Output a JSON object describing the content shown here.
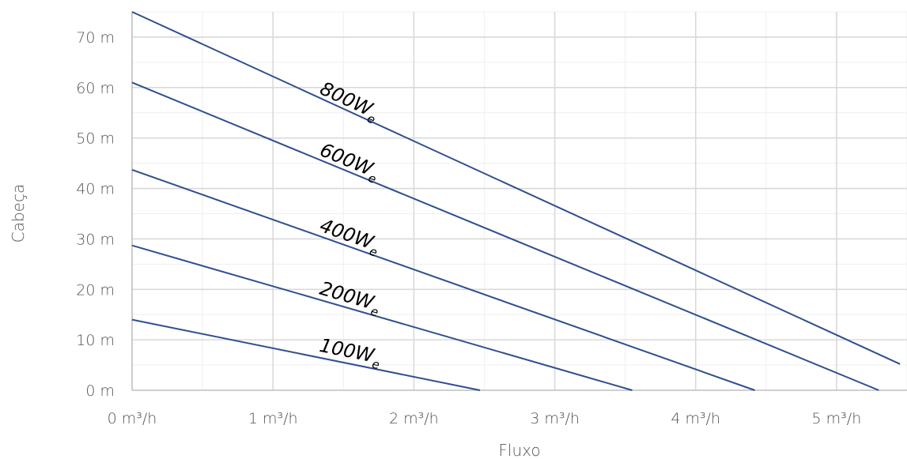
{
  "chart_data": {
    "type": "line",
    "xlabel": "Fluxo",
    "ylabel": "Cabeça",
    "xlim": [
      0,
      5.5
    ],
    "ylim": [
      0,
      75
    ],
    "x_ticks": [
      0,
      1,
      2,
      3,
      4,
      5
    ],
    "x_tick_labels": [
      "0 m³/h",
      "1 m³/h",
      "2 m³/h",
      "3 m³/h",
      "4 m³/h",
      "5 m³/h"
    ],
    "y_ticks": [
      0,
      10,
      20,
      30,
      40,
      50,
      60,
      70
    ],
    "y_tick_labels": [
      "0 m",
      "10 m",
      "20 m",
      "30 m",
      "40 m",
      "50 m",
      "60 m",
      "70 m"
    ],
    "grid": true,
    "line_color": "#2f4f8f",
    "series": [
      {
        "name": "800We",
        "label": "800W",
        "subscript": "e",
        "x": [
          0,
          5.45
        ],
        "y": [
          75,
          5.2
        ]
      },
      {
        "name": "600We",
        "label": "600W",
        "subscript": "e",
        "x": [
          0,
          5.3
        ],
        "y": [
          61,
          0
        ]
      },
      {
        "name": "400We",
        "label": "400W",
        "subscript": "e",
        "x": [
          0,
          4.42
        ],
        "y": [
          43.7,
          0
        ]
      },
      {
        "name": "200We",
        "label": "200W",
        "subscript": "e",
        "x": [
          0,
          3.55
        ],
        "y": [
          28.7,
          0
        ]
      },
      {
        "name": "100We",
        "label": "100W",
        "subscript": "e",
        "x": [
          0,
          2.47
        ],
        "y": [
          14,
          0
        ]
      }
    ]
  }
}
